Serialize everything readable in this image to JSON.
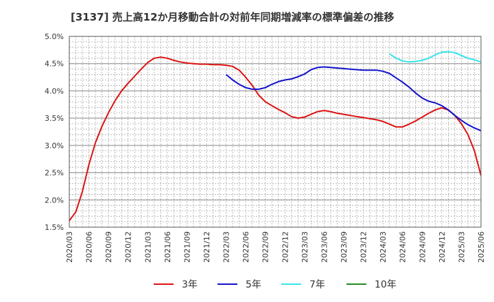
{
  "chart_data": {
    "type": "line",
    "title": "[3137]  売上高12か月移動合計の対前年同期増減率の標準偏差の推移",
    "xlabel": "",
    "ylabel": "",
    "ylim": [
      1.5,
      5.0
    ],
    "y_ticks": [
      "5.0%",
      "4.5%",
      "4.0%",
      "3.5%",
      "3.0%",
      "2.5%",
      "2.0%",
      "1.5%"
    ],
    "y_tick_values": [
      5.0,
      4.5,
      4.0,
      3.5,
      3.0,
      2.5,
      2.0,
      1.5
    ],
    "x_ticks": [
      "2020/03",
      "2020/06",
      "2020/09",
      "2020/12",
      "2021/03",
      "2021/06",
      "2021/09",
      "2021/12",
      "2022/03",
      "2022/06",
      "2022/09",
      "2022/12",
      "2023/03",
      "2023/06",
      "2023/09",
      "2023/12",
      "2024/03",
      "2024/06",
      "2024/09",
      "2024/12",
      "2025/03",
      "2025/06"
    ],
    "x_range_months": [
      0,
      63
    ],
    "grid": true,
    "legend_position": "bottom",
    "series": [
      {
        "name": "3年",
        "color": "#dd1111",
        "start_month": 0,
        "values": [
          1.62,
          1.78,
          2.15,
          2.65,
          3.05,
          3.35,
          3.6,
          3.82,
          4.0,
          4.14,
          4.27,
          4.4,
          4.52,
          4.6,
          4.62,
          4.6,
          4.56,
          4.53,
          4.51,
          4.5,
          4.49,
          4.49,
          4.48,
          4.48,
          4.47,
          4.45,
          4.38,
          4.25,
          4.1,
          3.92,
          3.8,
          3.73,
          3.66,
          3.6,
          3.53,
          3.5,
          3.52,
          3.57,
          3.62,
          3.64,
          3.62,
          3.59,
          3.57,
          3.55,
          3.53,
          3.51,
          3.49,
          3.47,
          3.44,
          3.39,
          3.34,
          3.34,
          3.39,
          3.45,
          3.52,
          3.59,
          3.65,
          3.69,
          3.65,
          3.55,
          3.4,
          3.2,
          2.9,
          2.45
        ]
      },
      {
        "name": "5年",
        "color": "#1111cc",
        "start_month": 24,
        "values": [
          4.3,
          4.2,
          4.12,
          4.06,
          4.03,
          4.03,
          4.06,
          4.12,
          4.17,
          4.2,
          4.22,
          4.26,
          4.31,
          4.39,
          4.43,
          4.44,
          4.43,
          4.42,
          4.41,
          4.4,
          4.39,
          4.38,
          4.38,
          4.38,
          4.36,
          4.32,
          4.24,
          4.16,
          4.07,
          3.96,
          3.87,
          3.81,
          3.78,
          3.73,
          3.65,
          3.55,
          3.46,
          3.38,
          3.32,
          3.27
        ]
      },
      {
        "name": "7年",
        "color": "#33e5ee",
        "start_month": 49,
        "values": [
          4.68,
          4.6,
          4.55,
          4.53,
          4.54,
          4.56,
          4.6,
          4.66,
          4.71,
          4.72,
          4.7,
          4.65,
          4.6,
          4.57,
          4.53
        ]
      },
      {
        "name": "10年",
        "color": "#228822",
        "start_month": 63,
        "values": []
      }
    ]
  }
}
